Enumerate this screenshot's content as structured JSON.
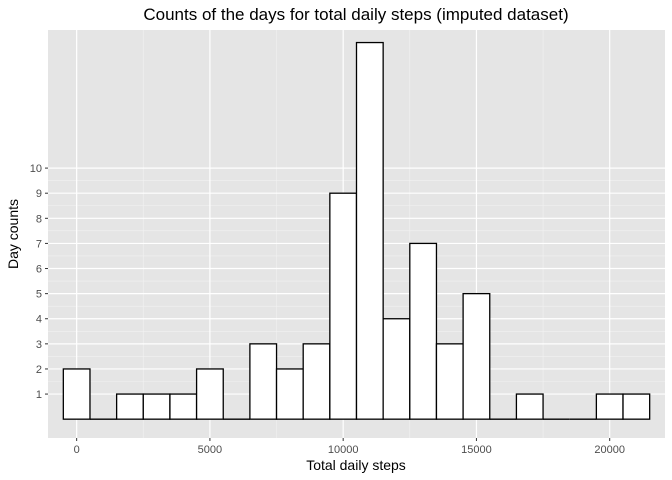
{
  "chart_data": {
    "type": "bar",
    "title": "Counts of the days for total daily steps (imputed dataset)",
    "xlabel": "Total daily steps",
    "ylabel": "Day counts",
    "bin_width": 1000,
    "bins": [
      {
        "center": 0,
        "count": 2
      },
      {
        "center": 1000,
        "count": 0
      },
      {
        "center": 2000,
        "count": 1
      },
      {
        "center": 3000,
        "count": 1
      },
      {
        "center": 4000,
        "count": 1
      },
      {
        "center": 5000,
        "count": 2
      },
      {
        "center": 6000,
        "count": 0
      },
      {
        "center": 7000,
        "count": 3
      },
      {
        "center": 8000,
        "count": 2
      },
      {
        "center": 9000,
        "count": 3
      },
      {
        "center": 10000,
        "count": 9
      },
      {
        "center": 11000,
        "count": 15
      },
      {
        "center": 12000,
        "count": 4
      },
      {
        "center": 13000,
        "count": 7
      },
      {
        "center": 14000,
        "count": 3
      },
      {
        "center": 15000,
        "count": 5
      },
      {
        "center": 16000,
        "count": 0
      },
      {
        "center": 17000,
        "count": 1
      },
      {
        "center": 18000,
        "count": 0
      },
      {
        "center": 19000,
        "count": 0
      },
      {
        "center": 20000,
        "count": 1
      },
      {
        "center": 21000,
        "count": 1
      }
    ],
    "xlim": [
      -1075,
      22075
    ],
    "ylim": [
      -0.75,
      15.5
    ],
    "x_ticks": [
      0,
      5000,
      10000,
      15000,
      20000
    ],
    "x_tick_labels": [
      "0",
      "5000",
      "10000",
      "15000",
      "20000"
    ],
    "y_ticks": [
      1,
      2,
      3,
      4,
      5,
      6,
      7,
      8,
      9,
      10
    ],
    "y_tick_labels": [
      "1",
      "2",
      "3",
      "4",
      "5",
      "6",
      "7",
      "8",
      "9",
      "10"
    ],
    "grid": true,
    "legend": "none",
    "colors": {
      "panel_background": "#e5e5e5",
      "grid_major": "#ffffff",
      "grid_minor": "#f2f2f2",
      "bar_fill": "#ffffff",
      "bar_outline": "#000000",
      "tick_text": "#4d4d4d",
      "title_text": "#000000"
    }
  }
}
